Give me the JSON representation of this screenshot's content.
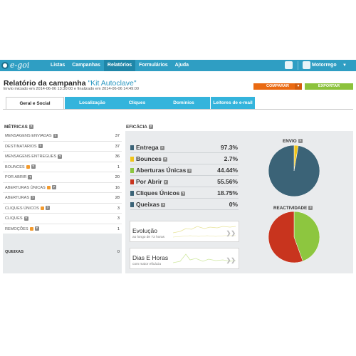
{
  "logo": {
    "text": "e-goi"
  },
  "nav": {
    "items": [
      "Listas",
      "Campanhas",
      "Relatórios",
      "Formulários",
      "Ajuda"
    ]
  },
  "user": {
    "name": "Motorrego"
  },
  "header": {
    "title": "Relatório da campanha",
    "campaign": "\"Kit Autoclave\"",
    "subtitle": "Envio iniciado em 2014-06-06 13:30:00 e finalizado em 2014-06-06 14:49:00"
  },
  "actions": {
    "compare": "COMPARAR",
    "export": "EXPORTAR"
  },
  "tabs": [
    "Geral e Social",
    "Localização",
    "Cliques",
    "Domínios",
    "Leitores de e-mail"
  ],
  "metrics": {
    "heading": "MÉTRICAS",
    "rows": [
      {
        "label": "MENSAGENS ENVIADAS",
        "value": "37"
      },
      {
        "label": "DESTINATÁRIOS",
        "value": "37"
      },
      {
        "label": "MENSAGENS ENTREGUES",
        "value": "36"
      },
      {
        "label": "BOUNCES",
        "value": "1"
      },
      {
        "label": "POR ABRIR",
        "value": "20"
      },
      {
        "label": "ABERTURAS ÚNICAS",
        "value": "16"
      },
      {
        "label": "ABERTURAS",
        "value": "28"
      },
      {
        "label": "CLIQUES ÚNICOS",
        "value": "3"
      },
      {
        "label": "CLIQUES",
        "value": "3"
      },
      {
        "label": "REMOÇÕES",
        "value": "1"
      }
    ],
    "complaints": {
      "label": "QUEIXAS",
      "value": "0"
    }
  },
  "efficacy": {
    "heading": "EFICÁCIA",
    "rows": [
      {
        "label": "Entrega",
        "value": "97.3%",
        "color": "#3b6377"
      },
      {
        "label": "Bounces",
        "value": "2.7%",
        "color": "#f0c419"
      },
      {
        "label": "Aberturas Únicas",
        "value": "44.44%",
        "color": "#8dc63f"
      },
      {
        "label": "Por Abrir",
        "value": "55.56%",
        "color": "#c8341e"
      },
      {
        "label": "Cliques Únicos",
        "value": "18.75%",
        "color": "#3b6377"
      },
      {
        "label": "Queixas",
        "value": "0%",
        "color": "#3b6377"
      }
    ],
    "evolution": {
      "title": "Evolução",
      "caption": "ao longo de 72 horas"
    },
    "days_hours": {
      "title": "Dias E Horas",
      "caption": "com maior eficácia"
    }
  },
  "pies": {
    "envio": {
      "title": "ENVIO",
      "slices": [
        {
          "label": "Entrega",
          "value": 97.3,
          "color": "#3b6377"
        },
        {
          "label": "Bounces",
          "value": 2.7,
          "color": "#f0c419"
        }
      ]
    },
    "reactividade": {
      "title": "REACTIVIDADE",
      "slices": [
        {
          "label": "Aberturas Únicas",
          "value": 44.44,
          "color": "#8dc63f"
        },
        {
          "label": "Por Abrir",
          "value": 55.56,
          "color": "#c8341e"
        }
      ]
    }
  }
}
